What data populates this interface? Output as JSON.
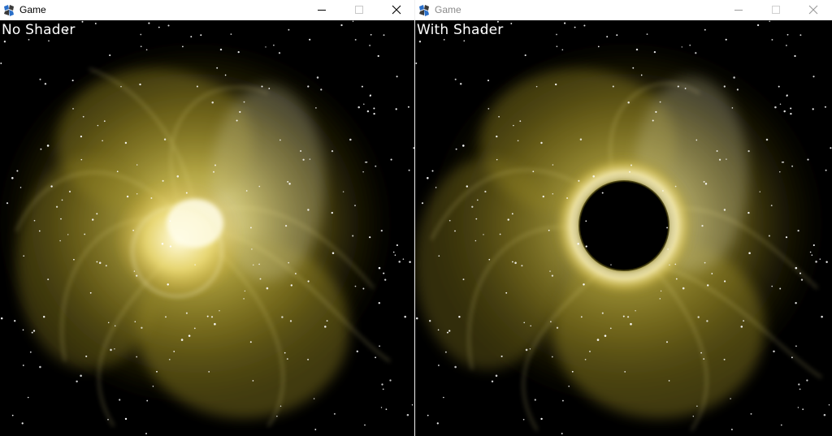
{
  "windows": [
    {
      "id": "left",
      "title": "Game",
      "active": true,
      "label": "No Shader",
      "shader": false
    },
    {
      "id": "right",
      "title": "Game",
      "active": false,
      "label": "With Shader",
      "shader": true
    }
  ],
  "icons": {
    "app": "game-app-icon",
    "minimize": "minimize-icon",
    "maximize": "maximize-icon",
    "close": "close-icon"
  },
  "colors": {
    "space": "#000000",
    "nebula_core": "#f6f0b8",
    "nebula_mid": "#c9b83a",
    "nebula_outer": "#6f6518",
    "star": "#ffffff",
    "title_active": "#000000",
    "title_inactive": "#8a8a8a"
  }
}
